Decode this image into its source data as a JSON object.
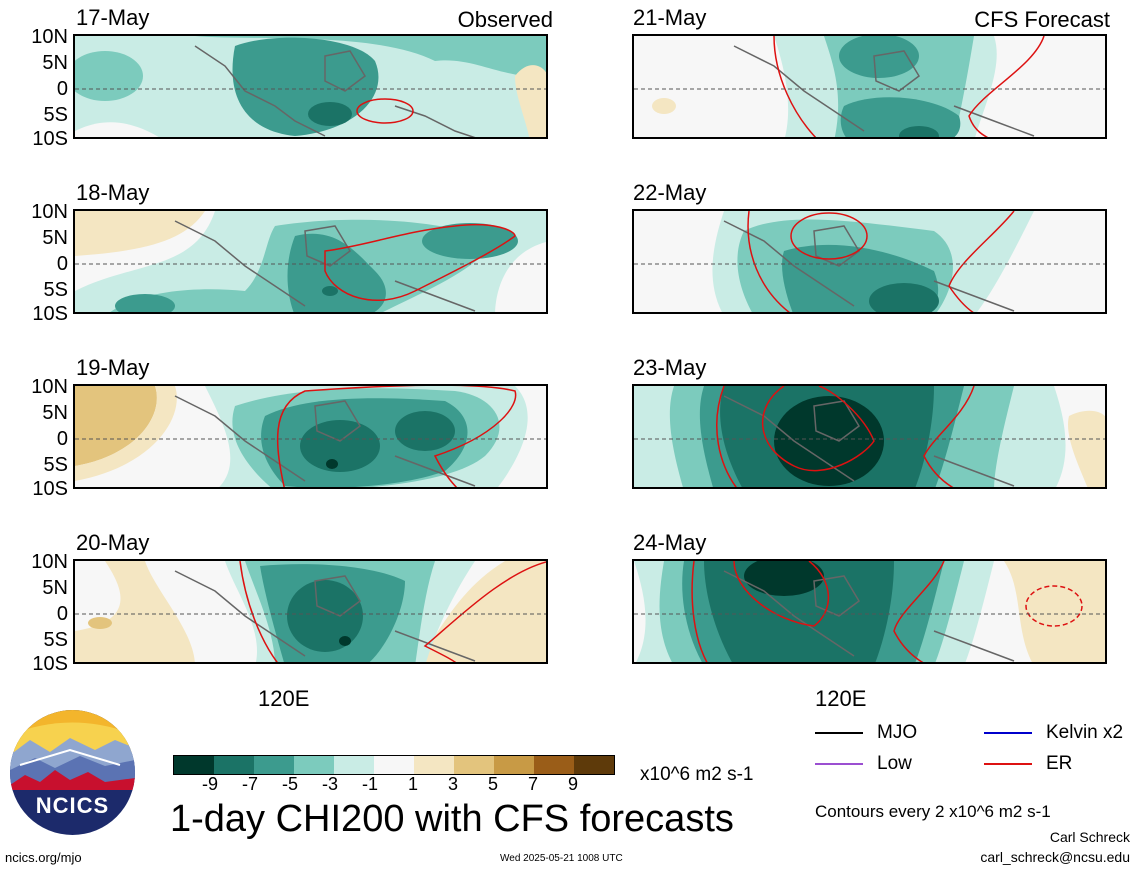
{
  "header": {
    "left_label": "Observed",
    "right_label": "CFS Forecast"
  },
  "latitude_labels": [
    "10N",
    "5N",
    "0",
    "5S",
    "10S"
  ],
  "longitude_label": "120E",
  "panels": [
    {
      "date": "17-May",
      "column": "observed"
    },
    {
      "date": "18-May",
      "column": "observed"
    },
    {
      "date": "19-May",
      "column": "observed"
    },
    {
      "date": "20-May",
      "column": "observed"
    },
    {
      "date": "21-May",
      "column": "forecast"
    },
    {
      "date": "22-May",
      "column": "forecast"
    },
    {
      "date": "23-May",
      "column": "forecast"
    },
    {
      "date": "24-May",
      "column": "forecast"
    }
  ],
  "colorbar": {
    "colors": [
      "#00382c",
      "#1b7366",
      "#3c9b8e",
      "#7ccbbd",
      "#c9ece5",
      "#f7f7f7",
      "#f4e6c2",
      "#e3c47d",
      "#c89a45",
      "#9a5d18",
      "#5e3a0a"
    ],
    "ticks": [
      "-9",
      "-7",
      "-5",
      "-3",
      "-1",
      "1",
      "3",
      "5",
      "7",
      "9"
    ],
    "units": "x10^6 m2 s-1"
  },
  "title": "1-day CHI200 with CFS forecasts",
  "legend": [
    {
      "label": "MJO",
      "color": "#000000"
    },
    {
      "label": "Kelvin x2",
      "color": "#0000cc"
    },
    {
      "label": "Low",
      "color": "#9b4fd1"
    },
    {
      "label": "ER",
      "color": "#dd1111"
    }
  ],
  "contours_note": "Contours every 2 x10^6 m2 s-1",
  "author": {
    "name": "Carl Schreck",
    "email": "carl_schreck@ncsu.edu"
  },
  "footer": {
    "url": "ncics.org/mjo",
    "timestamp": "Wed 2025-05-21 1008 UTC"
  },
  "logo": {
    "text": "NCICS"
  }
}
